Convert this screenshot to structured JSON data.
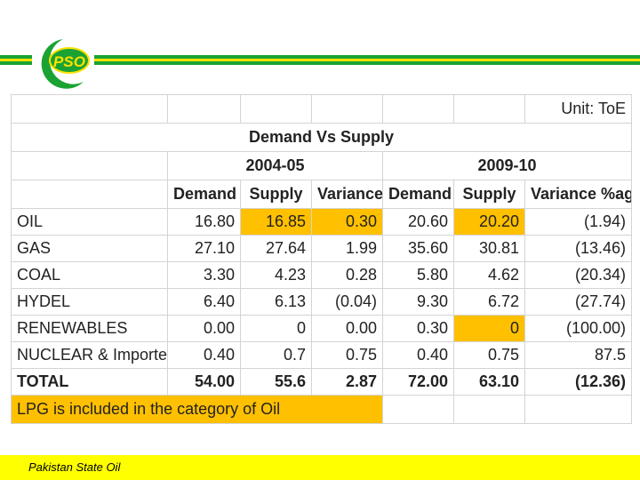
{
  "colors": {
    "green": "#1aa332",
    "yellow": "#ffe100",
    "highlight": "#ffc000",
    "negative": "#ff0000",
    "footer": "#ffff00"
  },
  "logo": {
    "text": "PSO"
  },
  "table": {
    "unit": "Unit: ToE",
    "title": "Demand Vs Supply",
    "periods": [
      "2004-05",
      "2009-10"
    ],
    "column_headers": [
      "Demand",
      "Supply",
      "Variance",
      "Demand",
      "Supply",
      "Variance %age"
    ],
    "rows": [
      {
        "label": "OIL",
        "values": [
          "16.80",
          "16.85",
          "0.30",
          "20.60",
          "20.20",
          "(1.94)"
        ]
      },
      {
        "label": "GAS",
        "values": [
          "27.10",
          "27.64",
          "1.99",
          "35.60",
          "30.81",
          "(13.46)"
        ]
      },
      {
        "label": "COAL",
        "values": [
          "3.30",
          "4.23",
          "0.28",
          "5.80",
          "4.62",
          "(20.34)"
        ]
      },
      {
        "label": "HYDEL",
        "values": [
          "6.40",
          "6.13",
          "(0.04)",
          "9.30",
          "6.72",
          "(27.74)"
        ]
      },
      {
        "label": "RENEWABLES",
        "values": [
          "0.00",
          "0",
          "0.00",
          "0.30",
          "0",
          "(100.00)"
        ]
      },
      {
        "label": "NUCLEAR & Imported",
        "values": [
          "0.40",
          "0.7",
          "0.75",
          "0.40",
          "0.75",
          "87.5"
        ]
      }
    ],
    "total": {
      "label": "TOTAL",
      "values": [
        "54.00",
        "55.6",
        "2.87",
        "72.00",
        "63.10",
        "(12.36)"
      ]
    },
    "note": "LPG is included in the category of Oil"
  },
  "footer": {
    "text": "Pakistan State Oil"
  }
}
